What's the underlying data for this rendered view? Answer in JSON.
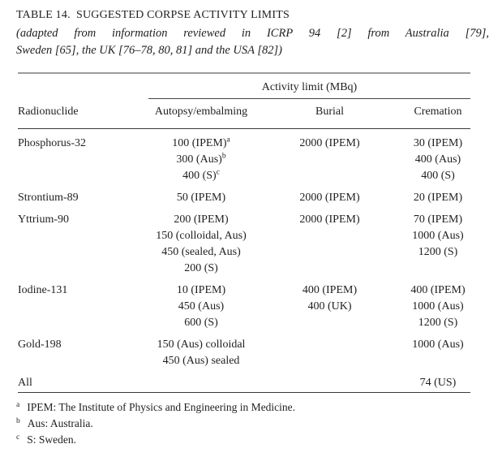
{
  "title": "TABLE 14. SUGGESTED CORPSE ACTIVITY LIMITS",
  "subtitle_line1": "(adapted from information reviewed in ICRP 94 [2] from Australia [79],",
  "subtitle_line2": "Sweden [65], the UK [76–78, 80, 81] and the USA [82])",
  "table": {
    "spanner_label": "Activity limit (MBq)",
    "col_headers": [
      "Radionuclide",
      "Autopsy/embalming",
      "Burial",
      "Cremation"
    ],
    "rows": [
      {
        "radionuclide": "Phosphorus-32",
        "autopsy_embalming": [
          {
            "text": "100 (IPEM)",
            "sup": "a"
          },
          {
            "text": "300 (Aus)",
            "sup": "b"
          },
          {
            "text": "400 (S)",
            "sup": "c"
          }
        ],
        "burial": [
          {
            "text": "2000 (IPEM)"
          }
        ],
        "cremation": [
          {
            "text": "30 (IPEM)"
          },
          {
            "text": "400 (Aus)"
          },
          {
            "text": "400 (S)"
          }
        ]
      },
      {
        "radionuclide": "Strontium-89",
        "autopsy_embalming": [
          {
            "text": "50 (IPEM)"
          }
        ],
        "burial": [
          {
            "text": "2000 (IPEM)"
          }
        ],
        "cremation": [
          {
            "text": "20 (IPEM)"
          }
        ]
      },
      {
        "radionuclide": "Yttrium-90",
        "autopsy_embalming": [
          {
            "text": "200 (IPEM)"
          },
          {
            "text": "150 (colloidal, Aus)"
          },
          {
            "text": "450 (sealed, Aus)"
          },
          {
            "text": "200 (S)"
          }
        ],
        "burial": [
          {
            "text": "2000 (IPEM)"
          }
        ],
        "cremation": [
          {
            "text": "70 (IPEM)"
          },
          {
            "text": "1000 (Aus)"
          },
          {
            "text": "1200 (S)"
          }
        ]
      },
      {
        "radionuclide": "Iodine-131",
        "autopsy_embalming": [
          {
            "text": "10 (IPEM)"
          },
          {
            "text": "450 (Aus)"
          },
          {
            "text": "600 (S)"
          }
        ],
        "burial": [
          {
            "text": "400 (IPEM)"
          },
          {
            "text": "400 (UK)"
          }
        ],
        "cremation": [
          {
            "text": "400 (IPEM)"
          },
          {
            "text": "1000 (Aus)"
          },
          {
            "text": "1200 (S)"
          }
        ]
      },
      {
        "radionuclide": "Gold-198",
        "autopsy_embalming": [
          {
            "text": "150 (Aus) colloidal"
          },
          {
            "text": "450 (Aus) sealed"
          }
        ],
        "burial": [],
        "cremation": [
          {
            "text": "1000 (Aus)"
          }
        ]
      },
      {
        "radionuclide": "All",
        "autopsy_embalming": [],
        "burial": [],
        "cremation": [
          {
            "text": "74 (US)"
          }
        ]
      }
    ],
    "footnotes": [
      {
        "marker": "a",
        "text": "IPEM: The Institute of Physics and Engineering in Medicine."
      },
      {
        "marker": "b",
        "text": "Aus: Australia."
      },
      {
        "marker": "c",
        "text": "S: Sweden."
      }
    ]
  },
  "colors": {
    "background": "#ffffff",
    "text": "#1f1f1f",
    "rule_dark": "#3a3a3a",
    "rule_light": "#9c9c9c"
  }
}
